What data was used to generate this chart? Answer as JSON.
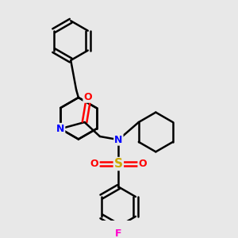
{
  "bg_color": "#e8e8e8",
  "line_color": "#000000",
  "bond_width": 1.8,
  "atom_colors": {
    "N": "#0000ff",
    "O": "#ff0000",
    "S": "#ccaa00",
    "F": "#ff00cc",
    "C": "#000000"
  },
  "figsize": [
    3.0,
    3.0
  ],
  "dpi": 100,
  "xlim": [
    0,
    10
  ],
  "ylim": [
    0,
    10
  ]
}
